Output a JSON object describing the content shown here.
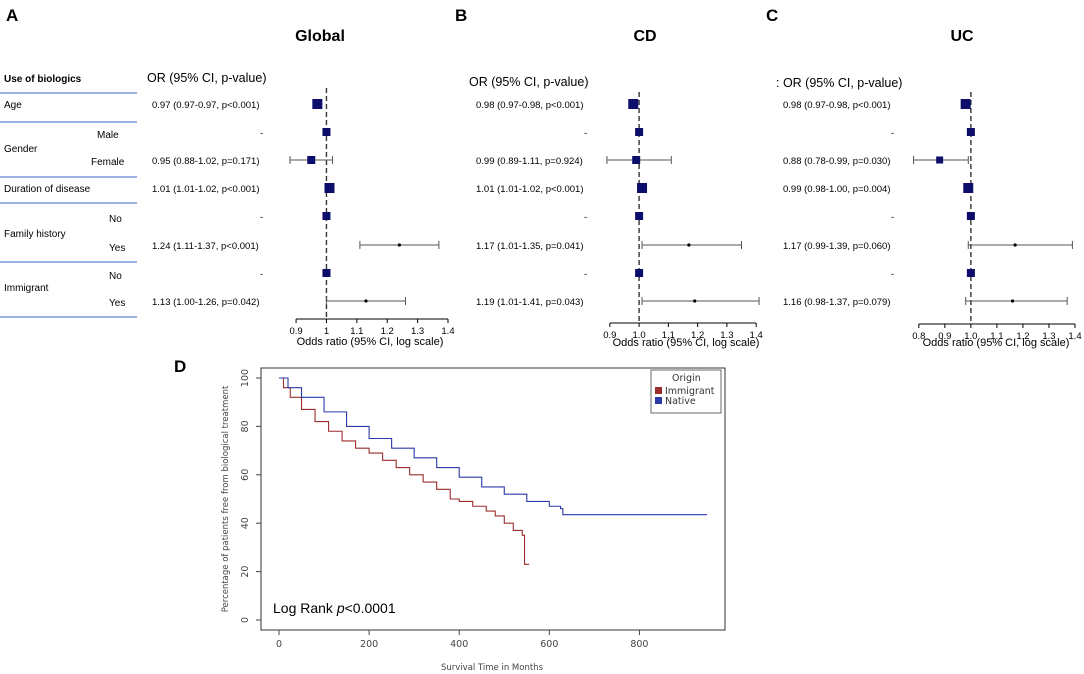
{
  "panel_letters": [
    "A",
    "B",
    "C",
    "D"
  ],
  "chart_data": [
    {
      "type": "forest",
      "title": "Global",
      "or_header": "OR (95% CI, p-value)",
      "xlabel": "Odds ratio (95% CI, log scale)",
      "xticks": [
        "0.9",
        "1",
        "1.1",
        "1.2",
        "1.3",
        "1.4"
      ],
      "xtick_values": [
        0.9,
        1.0,
        1.1,
        1.2,
        1.3,
        1.4
      ],
      "xlim": [
        0.88,
        1.4
      ],
      "reference_line": 1.0,
      "rows": [
        {
          "or": 0.97,
          "lo": 0.97,
          "hi": 0.97,
          "text": "0.97 (0.97-0.97, p<0.001)",
          "big": true
        },
        {
          "or": 1.0,
          "lo": 1.0,
          "hi": 1.0,
          "text": "-",
          "big": true
        },
        {
          "or": 0.95,
          "lo": 0.88,
          "hi": 1.02,
          "text": "0.95 (0.88-1.02, p=0.171)",
          "big": true
        },
        {
          "or": 1.01,
          "lo": 1.01,
          "hi": 1.02,
          "text": "1.01 (1.01-1.02, p<0.001)",
          "big": true
        },
        {
          "or": 1.0,
          "lo": 1.0,
          "hi": 1.0,
          "text": "-",
          "big": true
        },
        {
          "or": 1.24,
          "lo": 1.11,
          "hi": 1.37,
          "text": "1.24 (1.11-1.37, p<0.001)",
          "big": false
        },
        {
          "or": 1.0,
          "lo": 1.0,
          "hi": 1.0,
          "text": "-",
          "big": true
        },
        {
          "or": 1.13,
          "lo": 1.0,
          "hi": 1.26,
          "text": "1.13 (1.00-1.26, p=0.042)",
          "big": false
        }
      ]
    },
    {
      "type": "forest",
      "title": "CD",
      "or_header": "OR (95% CI, p-value)",
      "xlabel": "Odds ratio (95% CI, log scale)",
      "xticks": [
        "0.9",
        "1.0",
        "1.1",
        "1.2",
        "1.3",
        "1.4"
      ],
      "xtick_values": [
        0.9,
        1.0,
        1.1,
        1.2,
        1.3,
        1.4
      ],
      "xlim": [
        0.88,
        1.42
      ],
      "reference_line": 1.0,
      "rows": [
        {
          "or": 0.98,
          "lo": 0.97,
          "hi": 0.98,
          "text": "0.98 (0.97-0.98, p<0.001)",
          "big": true
        },
        {
          "or": 1.0,
          "lo": 1.0,
          "hi": 1.0,
          "text": "-",
          "big": true
        },
        {
          "or": 0.99,
          "lo": 0.89,
          "hi": 1.11,
          "text": "0.99 (0.89-1.11, p=0.924)",
          "big": true
        },
        {
          "or": 1.01,
          "lo": 1.01,
          "hi": 1.02,
          "text": "1.01 (1.01-1.02, p<0.001)",
          "big": true
        },
        {
          "or": 1.0,
          "lo": 1.0,
          "hi": 1.0,
          "text": "-",
          "big": true
        },
        {
          "or": 1.17,
          "lo": 1.01,
          "hi": 1.35,
          "text": "1.17 (1.01-1.35, p=0.041)",
          "big": false
        },
        {
          "or": 1.0,
          "lo": 1.0,
          "hi": 1.0,
          "text": "-",
          "big": true
        },
        {
          "or": 1.19,
          "lo": 1.01,
          "hi": 1.41,
          "text": "1.19 (1.01-1.41, p=0.043)",
          "big": false
        }
      ]
    },
    {
      "type": "forest",
      "title": "UC",
      "or_header": ": OR (95% CI, p-value)",
      "xlabel": "Odds ratio (95% CI, log scale)",
      "xticks": [
        "0.8",
        "0.9",
        "1.0",
        "1.1",
        "1.2",
        "1.3",
        "1.4"
      ],
      "xtick_values": [
        0.8,
        0.9,
        1.0,
        1.1,
        1.2,
        1.3,
        1.4
      ],
      "xlim": [
        0.77,
        1.4
      ],
      "reference_line": 1.0,
      "rows": [
        {
          "or": 0.98,
          "lo": 0.97,
          "hi": 0.98,
          "text": "0.98 (0.97-0.98, p<0.001)",
          "big": true
        },
        {
          "or": 1.0,
          "lo": 1.0,
          "hi": 1.0,
          "text": "-",
          "big": true
        },
        {
          "or": 0.88,
          "lo": 0.78,
          "hi": 0.99,
          "text": "0.88 (0.78-0.99, p=0.030)",
          "big": false
        },
        {
          "or": 0.99,
          "lo": 0.98,
          "hi": 1.0,
          "text": "0.99 (0.98-1.00, p=0.004)",
          "big": true
        },
        {
          "or": 1.0,
          "lo": 1.0,
          "hi": 1.0,
          "text": "-",
          "big": true
        },
        {
          "or": 1.17,
          "lo": 0.99,
          "hi": 1.39,
          "text": "1.17 (0.99-1.39, p=0.060)",
          "big": false
        },
        {
          "or": 1.0,
          "lo": 1.0,
          "hi": 1.0,
          "text": "-",
          "big": true
        },
        {
          "or": 1.16,
          "lo": 0.98,
          "hi": 1.37,
          "text": "1.16 (0.98-1.37, p=0.079)",
          "big": false
        }
      ]
    },
    {
      "type": "line",
      "subtype": "kaplan-meier",
      "xlabel": "Survival Time in Months",
      "ylabel": "Percentage of patients free from biological treatment",
      "xlim": [
        0,
        960
      ],
      "ylim": [
        0,
        100
      ],
      "xticks": [
        0,
        200,
        400,
        600,
        800
      ],
      "yticks": [
        0,
        20,
        40,
        60,
        80,
        100
      ],
      "annotation": {
        "prefix": "Log Rank ",
        "italic": "p",
        "suffix": "<0.0001"
      },
      "legend_title": "Origin",
      "series": [
        {
          "name": "Immigrant",
          "color": "#9b2d2d",
          "points": [
            [
              0,
              100
            ],
            [
              10,
              96
            ],
            [
              25,
              92
            ],
            [
              50,
              87
            ],
            [
              80,
              82
            ],
            [
              110,
              78
            ],
            [
              140,
              74
            ],
            [
              170,
              71
            ],
            [
              200,
              69
            ],
            [
              230,
              66
            ],
            [
              260,
              63
            ],
            [
              290,
              60
            ],
            [
              320,
              57
            ],
            [
              350,
              54
            ],
            [
              380,
              50
            ],
            [
              400,
              49
            ],
            [
              430,
              47
            ],
            [
              460,
              45
            ],
            [
              480,
              43
            ],
            [
              500,
              40
            ],
            [
              520,
              37
            ],
            [
              540,
              35
            ],
            [
              545,
              23
            ],
            [
              555,
              23
            ]
          ]
        },
        {
          "name": "Native",
          "color": "#2b3aa8",
          "points": [
            [
              0,
              100
            ],
            [
              20,
              96
            ],
            [
              50,
              92
            ],
            [
              100,
              86
            ],
            [
              150,
              80
            ],
            [
              200,
              75
            ],
            [
              250,
              71
            ],
            [
              300,
              67
            ],
            [
              350,
              63
            ],
            [
              400,
              59
            ],
            [
              450,
              55
            ],
            [
              500,
              52
            ],
            [
              550,
              49
            ],
            [
              600,
              47
            ],
            [
              625,
              46
            ],
            [
              630,
              43.5
            ],
            [
              950,
              43.5
            ]
          ]
        }
      ]
    }
  ],
  "row_labels": {
    "header": "Use of biologics",
    "age": "Age",
    "gender": "Gender",
    "male": "Male",
    "female": "Female",
    "duration": "Duration of disease",
    "family_history": "Family history",
    "fh_no": "No",
    "fh_yes": "Yes",
    "immigrant": "Immigrant",
    "im_no": "No",
    "im_yes": "Yes"
  }
}
